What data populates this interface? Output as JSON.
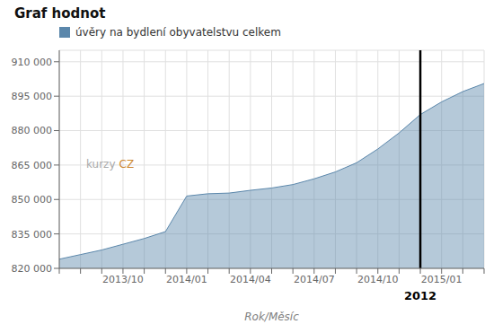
{
  "chart_data": {
    "type": "area",
    "title": "Graf hodnot",
    "xlabel": "Rok/Měsíc",
    "categories": [
      null,
      null,
      null,
      "2013/10",
      null,
      null,
      "2014/01",
      null,
      null,
      "2014/04",
      null,
      null,
      "2014/07",
      null,
      null,
      "2014/10",
      null,
      null,
      "2015/01",
      null,
      null
    ],
    "series": [
      {
        "name": "úvěry na bydlení obyvatelstvu celkem",
        "color": "#5b87ab",
        "values": [
          824000,
          826000,
          828000,
          830500,
          833000,
          836000,
          851500,
          852500,
          852800,
          854000,
          855000,
          856500,
          859000,
          862000,
          866000,
          872000,
          879000,
          887000,
          892500,
          897000,
          900500
        ]
      }
    ],
    "ylim": [
      820000,
      915000
    ],
    "yticks": [
      {
        "value": 820000,
        "label": "820 000"
      },
      {
        "value": 835000,
        "label": "835 000"
      },
      {
        "value": 850000,
        "label": "850 000"
      },
      {
        "value": 865000,
        "label": "865 000"
      },
      {
        "value": 880000,
        "label": "880 000"
      },
      {
        "value": 895000,
        "label": "895 000"
      },
      {
        "value": 910000,
        "label": "910 000"
      }
    ],
    "grid": true,
    "annotations": [
      {
        "text": "2012"
      },
      {
        "text": "kurzy"
      },
      {
        "text": "CZ"
      }
    ]
  }
}
